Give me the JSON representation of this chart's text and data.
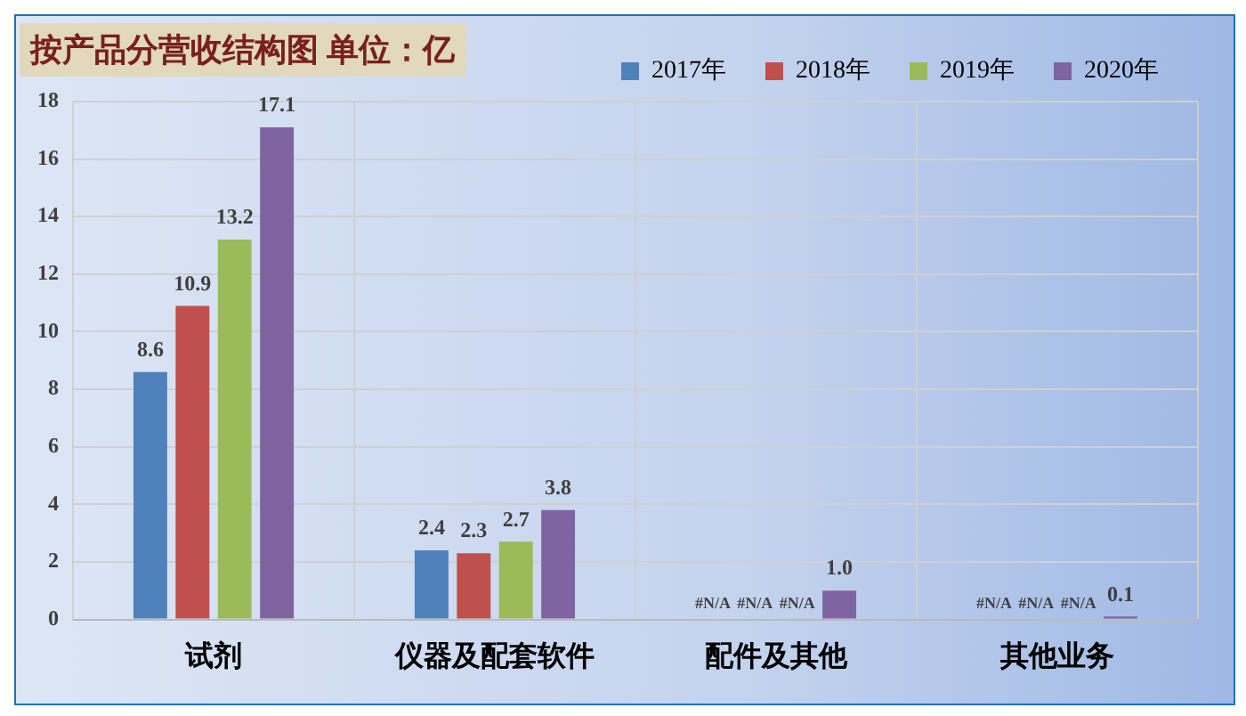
{
  "chart_data": {
    "type": "bar",
    "title": "按产品分营收结构图 单位：亿",
    "categories": [
      "试剂",
      "仪器及配套软件",
      "配件及其他",
      "其他业务"
    ],
    "series": [
      {
        "name": "2017年",
        "color": "#4f81bd",
        "values": [
          8.6,
          2.4,
          null,
          null
        ],
        "value_labels": [
          "8.6",
          "2.4",
          "#N/A",
          "#N/A"
        ]
      },
      {
        "name": "2018年",
        "color": "#c0504d",
        "values": [
          10.9,
          2.3,
          null,
          null
        ],
        "value_labels": [
          "10.9",
          "2.3",
          "#N/A",
          "#N/A"
        ]
      },
      {
        "name": "2019年",
        "color": "#9bbb59",
        "values": [
          13.2,
          2.7,
          null,
          null
        ],
        "value_labels": [
          "13.2",
          "2.7",
          "#N/A",
          "#N/A"
        ]
      },
      {
        "name": "2020年",
        "color": "#8064a2",
        "values": [
          17.1,
          3.8,
          1.0,
          0.1
        ],
        "value_labels": [
          "17.1",
          "3.8",
          "1.0",
          "0.1"
        ]
      }
    ],
    "ylim": [
      0,
      18
    ],
    "yticks": [
      0,
      2,
      4,
      6,
      8,
      10,
      12,
      14,
      16,
      18
    ],
    "grid": true,
    "legend": "top right"
  }
}
